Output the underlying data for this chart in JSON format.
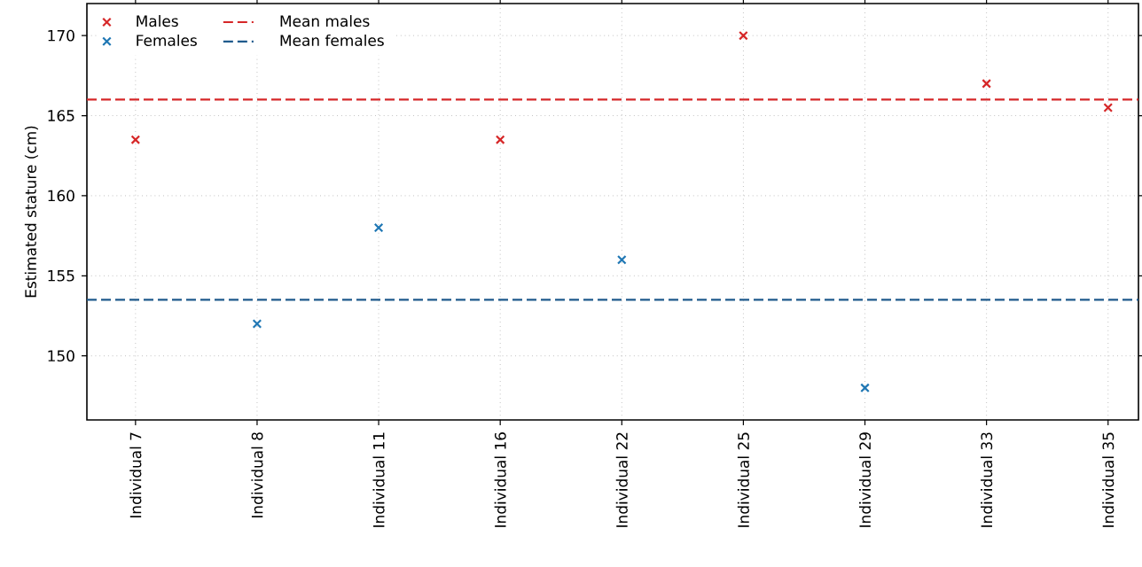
{
  "chart_data": {
    "type": "scatter",
    "ylabel": "Estimated stature (cm)",
    "categories": [
      "Individual 7",
      "Individual 8",
      "Individual 11",
      "Individual 16",
      "Individual 22",
      "Individual 25",
      "Individual 29",
      "Individual 33",
      "Individual 35"
    ],
    "series": [
      {
        "name": "Males",
        "color": "#d62728",
        "values": [
          163.5,
          null,
          null,
          163.5,
          null,
          170,
          null,
          167,
          165.5
        ]
      },
      {
        "name": "Females",
        "color": "#1f77b4",
        "values": [
          null,
          152,
          158,
          null,
          156,
          null,
          148,
          null,
          null
        ]
      }
    ],
    "ref_lines": [
      {
        "axis": "y",
        "value": 166,
        "label": "Mean males",
        "color": "#d62728",
        "line_style": "dashed"
      },
      {
        "axis": "y",
        "value": 153.5,
        "label": "Mean females",
        "color": "#1f5a8c",
        "line_style": "dashed"
      }
    ],
    "ylim": [
      146,
      172
    ],
    "yticks": [
      150,
      155,
      160,
      165,
      170
    ],
    "grid": true,
    "legend": "top left",
    "marker": "cross"
  }
}
